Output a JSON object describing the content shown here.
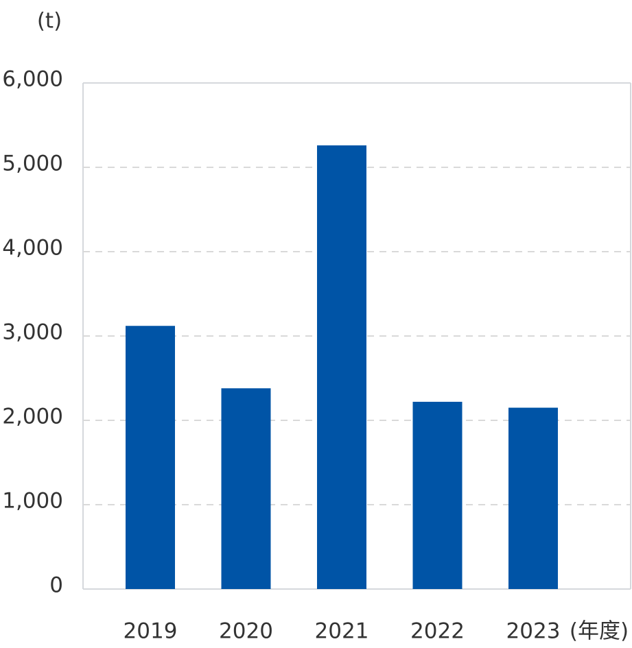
{
  "chart_data": {
    "type": "bar",
    "y_label": "(t)",
    "x_label": "(年度)",
    "categories": [
      "2019",
      "2020",
      "2021",
      "2022",
      "2023"
    ],
    "values": [
      3120,
      2380,
      5260,
      2220,
      2150
    ],
    "color": "#0054a6",
    "ylim": [
      0,
      6000
    ],
    "yticks": [
      0,
      {
        "value": 1000,
        "label": "1,000"
      },
      {
        "value": 2000,
        "label": "2,000"
      },
      {
        "value": 3000,
        "label": "3,000"
      },
      {
        "value": 4000,
        "label": "4,000"
      },
      {
        "value": 5000,
        "label": "5,000"
      },
      {
        "value": 6000,
        "label": "6,000"
      }
    ],
    "grid": true
  }
}
